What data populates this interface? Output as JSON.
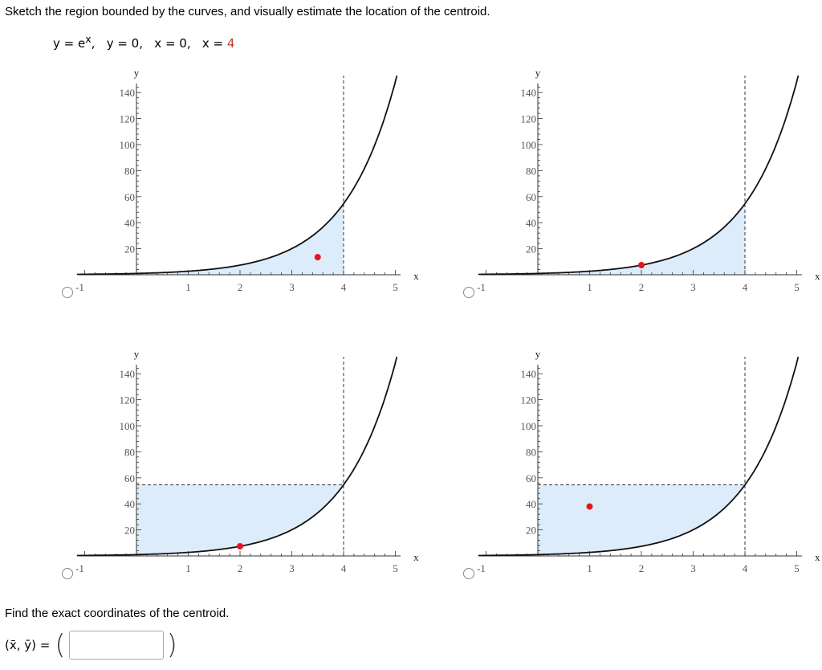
{
  "question": {
    "prompt": "Sketch the region bounded by the curves, and visually estimate the location of the centroid.",
    "eq1": "y = e",
    "eq1_sup": "x",
    "eq2": ",   y = 0,   x = 0,   x = ",
    "eq_limit": "4"
  },
  "graph_axis": {
    "x_label": "x",
    "y_label": "y",
    "x_ticks": [
      "-1",
      "1",
      "2",
      "3",
      "4",
      "5"
    ],
    "y_ticks": [
      "20",
      "40",
      "60",
      "80",
      "100",
      "120",
      "140"
    ]
  },
  "options": [
    {
      "region": "under",
      "centroid_x": 3.5,
      "centroid_y": 13.5
    },
    {
      "region": "under",
      "centroid_x": 2.0,
      "centroid_y": 7.39
    },
    {
      "region": "above",
      "centroid_x": 2.0,
      "centroid_y": 7.39
    },
    {
      "region": "above",
      "centroid_x": 1.0,
      "centroid_y": 38.0
    }
  ],
  "answer": {
    "find_text": "Find the exact coordinates of the centroid.",
    "coord_label": "(x̄, ȳ) =",
    "open_paren": "(",
    "close_paren": ")",
    "value": ""
  },
  "chart_data": [
    {
      "type": "line",
      "x": [
        -1,
        0,
        1,
        2,
        3,
        4,
        5
      ],
      "y_ticks": [
        20,
        40,
        60,
        80,
        100,
        120,
        140
      ],
      "xlim": [
        -1,
        5
      ],
      "ylim": [
        0,
        150
      ],
      "shaded_region": "under curve 0<=x<=4",
      "centroid": [
        3.5,
        13.5
      ]
    },
    {
      "type": "line",
      "xlim": [
        -1,
        5
      ],
      "ylim": [
        0,
        150
      ],
      "shaded_region": "under curve 0<=x<=4",
      "centroid": [
        2.0,
        7.39
      ]
    },
    {
      "type": "line",
      "xlim": [
        -1,
        5
      ],
      "ylim": [
        0,
        150
      ],
      "shaded_region": "above curve to y=e^4, 0<=x<=4",
      "centroid": [
        2.0,
        7.39
      ]
    },
    {
      "type": "line",
      "xlim": [
        -1,
        5
      ],
      "ylim": [
        0,
        150
      ],
      "shaded_region": "above curve to y=e^4, 0<=x<=4",
      "centroid": [
        1.0,
        38.0
      ]
    }
  ]
}
